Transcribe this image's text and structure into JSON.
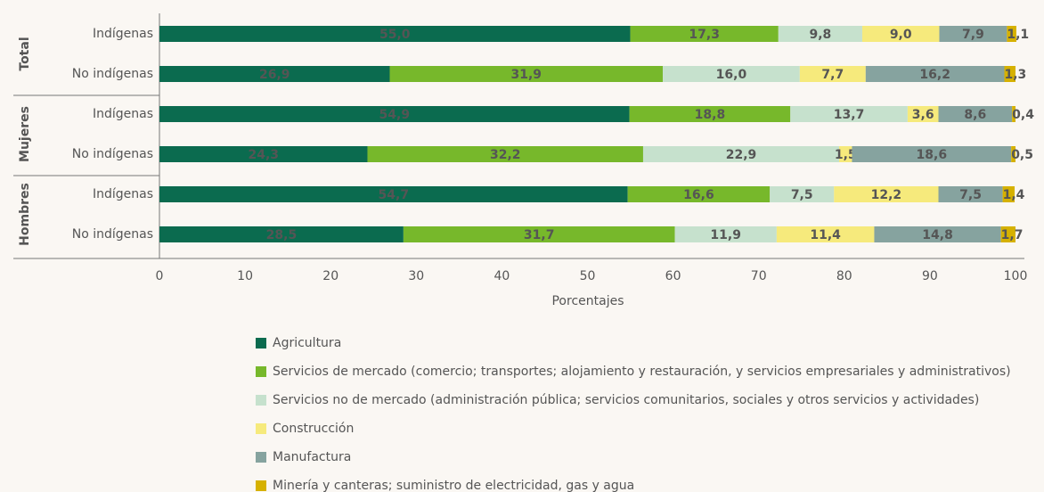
{
  "chart_data": {
    "type": "stacked-bar-horizontal",
    "xlabel": "Porcentajes",
    "groups": [
      "Total",
      "Mujeres",
      "Hombres"
    ],
    "categories": [
      "Indígenas",
      "No indígenas",
      "Indígenas",
      "No indígenas",
      "Indígenas",
      "No indígenas"
    ],
    "xlim": [
      0,
      100
    ],
    "xticks": [
      0,
      10,
      20,
      30,
      40,
      50,
      60,
      70,
      80,
      90,
      100
    ],
    "series": [
      {
        "name": "Agricultura",
        "color": "#0b6b4f",
        "values": [
          55.0,
          26.9,
          54.9,
          24.3,
          54.7,
          28.5
        ],
        "value_labels": [
          "55,0",
          "26,9",
          "54,9",
          "24,3",
          "54,7",
          "28,5"
        ]
      },
      {
        "name": "Servicios de mercado (comercio; transportes; alojamiento y restauración, y servicios empresariales y administrativos)",
        "color": "#77b82b",
        "values": [
          17.3,
          31.9,
          18.8,
          32.2,
          16.6,
          31.7
        ],
        "value_labels": [
          "17,3",
          "31,9",
          "18,8",
          "32,2",
          "16,6",
          "31,7"
        ]
      },
      {
        "name": "Servicios no de mercado (administración pública; servicios comunitarios, sociales y otros servicios y actividades)",
        "color": "#c6e1cd",
        "values": [
          9.8,
          16.0,
          13.7,
          22.9,
          7.5,
          11.9
        ],
        "value_labels": [
          "9,8",
          "16,0",
          "13,7",
          "22,9",
          "7,5",
          "11,9"
        ]
      },
      {
        "name": "Construcción",
        "color": "#f6ea7c",
        "values": [
          9.0,
          7.7,
          3.6,
          1.5,
          12.2,
          11.4
        ],
        "value_labels": [
          "9,0",
          "7,7",
          "3,6",
          "1,5",
          "12,2",
          "11,4"
        ]
      },
      {
        "name": "Manufactura",
        "color": "#86a39f",
        "values": [
          7.9,
          16.2,
          8.6,
          18.6,
          7.5,
          14.8
        ],
        "value_labels": [
          "7,9",
          "16,2",
          "8,6",
          "18,6",
          "7,5",
          "14,8"
        ]
      },
      {
        "name": "Minería y canteras; suministro de electricidad, gas y agua",
        "color": "#d6b100",
        "values": [
          1.1,
          1.3,
          0.4,
          0.5,
          1.4,
          1.7
        ],
        "value_labels": [
          "1,1",
          "1,3",
          "0,4",
          "0,5",
          "1,4",
          "1,7"
        ]
      }
    ]
  }
}
